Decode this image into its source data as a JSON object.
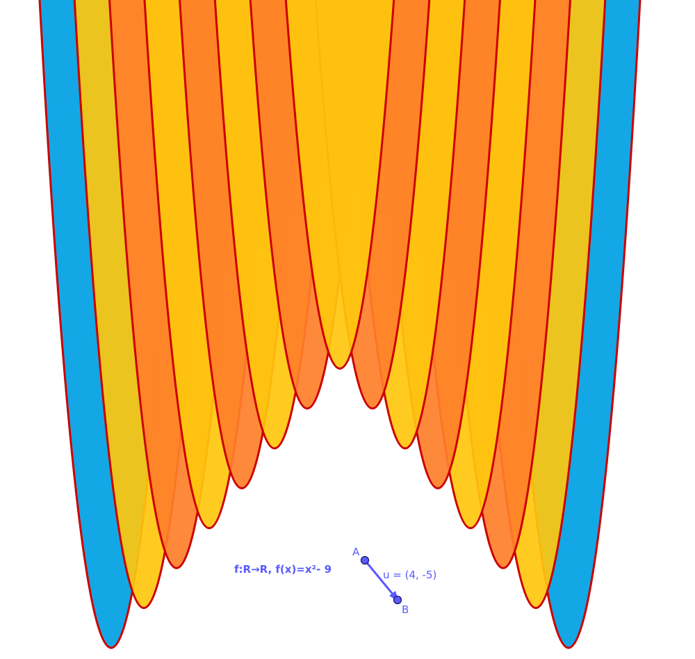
{
  "function_label": "f:R→R, f(x)=x²- 9",
  "points": [
    {
      "label": "A"
    },
    {
      "label": "B"
    }
  ],
  "vector_label": "u = (4, -5)"
}
